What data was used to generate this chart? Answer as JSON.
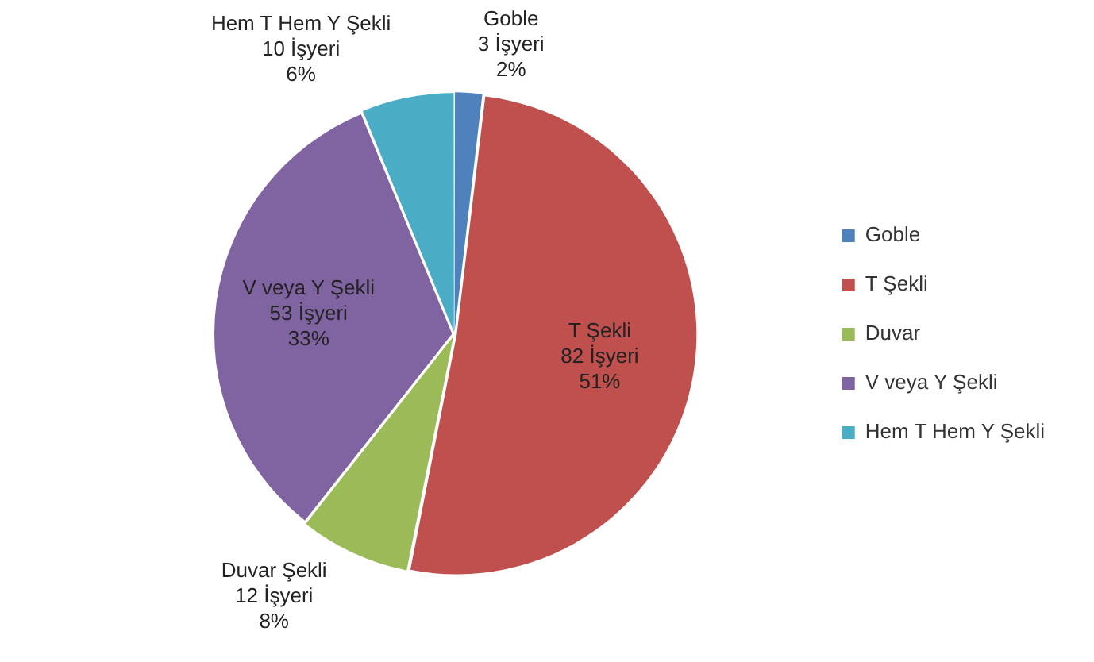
{
  "chart_data": {
    "type": "pie",
    "categories": [
      "Goble",
      "T Şekli",
      "Duvar",
      "V veya Y Şekli",
      "Hem T Hem Y Şekli"
    ],
    "values": [
      3,
      82,
      12,
      53,
      10
    ],
    "colors": [
      "#4f81bd",
      "#c0504d",
      "#9bbb59",
      "#8064a2",
      "#4bacc6"
    ],
    "value_labels": [
      "Goble\n3 İşyeri\n2%",
      "T Şekli\n82 İşyeri\n51%",
      "Duvar Şekli\n12 İşyeri\n8%",
      "V veya Y Şekli\n53 İşyeri\n33%",
      "Hem T Hem Y Şekli\n10 İşyeri\n6%"
    ],
    "legend": "right"
  }
}
